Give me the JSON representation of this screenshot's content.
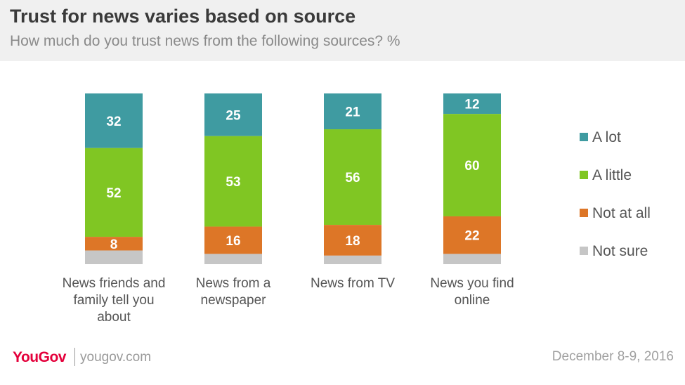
{
  "header": {
    "title": "Trust for news varies based on source",
    "subtitle": "How much do you trust news from the following sources? %"
  },
  "footer": {
    "brand": "YouGov",
    "url": "yougov.com",
    "date": "December 8-9, 2016"
  },
  "colors": {
    "a_lot": "#3f9ba1",
    "a_little": "#80c623",
    "not_at_all": "#dd7627",
    "not_sure": "#c6c6c6"
  },
  "chart_data": {
    "type": "bar",
    "stacked": true,
    "orientation": "vertical",
    "categories": [
      [
        "News friends and",
        "family tell you",
        "about"
      ],
      [
        "News from a",
        "newspaper"
      ],
      [
        "News from TV"
      ],
      [
        "News you find",
        "online"
      ]
    ],
    "series": [
      {
        "name": "A lot",
        "color": "#3f9ba1",
        "values": [
          32,
          25,
          21,
          12
        ],
        "labeled": [
          true,
          true,
          true,
          true
        ]
      },
      {
        "name": "A little",
        "color": "#80c623",
        "values": [
          52,
          53,
          56,
          60
        ],
        "labeled": [
          true,
          true,
          true,
          true
        ]
      },
      {
        "name": "Not at all",
        "color": "#dd7627",
        "values": [
          8,
          16,
          18,
          22
        ],
        "labeled": [
          true,
          true,
          true,
          true
        ]
      },
      {
        "name": "Not sure",
        "color": "#c6c6c6",
        "values": [
          8,
          6,
          5,
          6
        ],
        "labeled": [
          false,
          false,
          false,
          false
        ]
      }
    ],
    "ylim": [
      0,
      100
    ],
    "grid": false,
    "legend_position": "right"
  }
}
